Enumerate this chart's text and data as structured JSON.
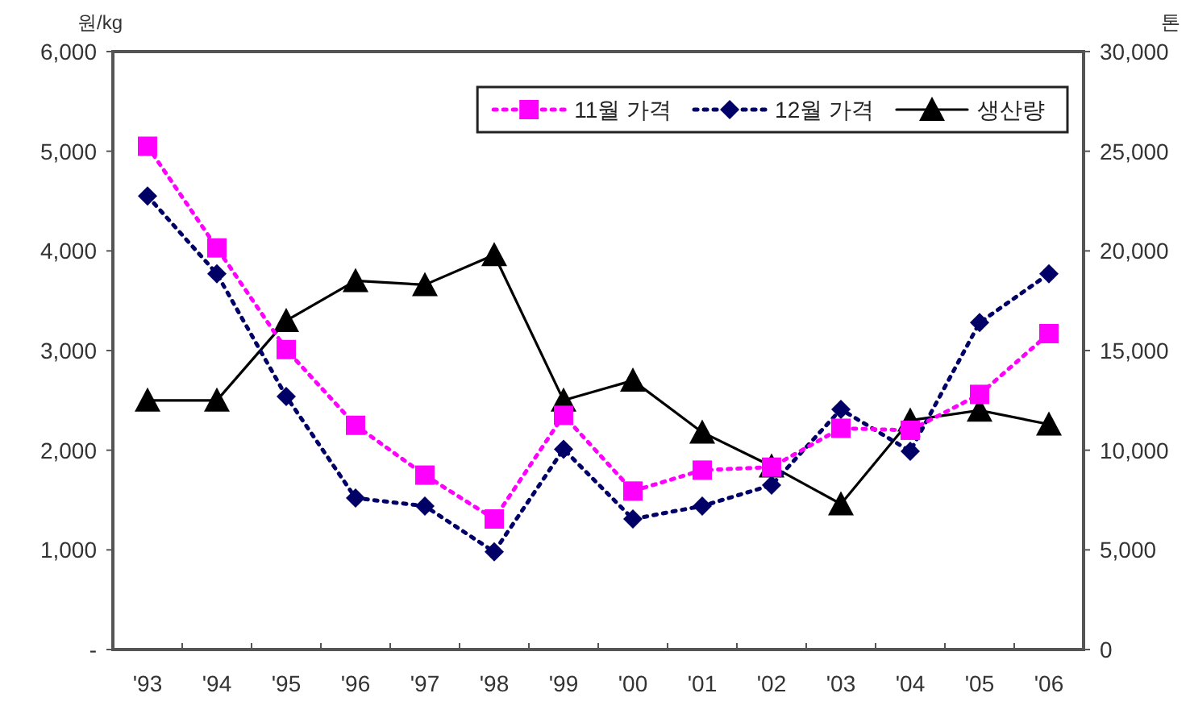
{
  "chart_data": {
    "type": "line",
    "ylabel": "원/kg",
    "y2label": "톤",
    "categories": [
      "'93",
      "'94",
      "'95",
      "'96",
      "'97",
      "'98",
      "'99",
      "'00",
      "'01",
      "'02",
      "'03",
      "'04",
      "'05",
      "'06"
    ],
    "series": [
      {
        "name": "11월 가격",
        "color": "#ff00ff",
        "marker": "square",
        "line_style": "dotted",
        "values": [
          5050,
          4030,
          3010,
          2250,
          1750,
          1310,
          2350,
          1590,
          1800,
          1830,
          2220,
          2200,
          2560,
          3170
        ]
      },
      {
        "name": "12월 가격",
        "color": "#000066",
        "marker": "diamond",
        "line_style": "dotted",
        "values": [
          4550,
          3770,
          2540,
          1520,
          1440,
          980,
          2010,
          1310,
          1440,
          1650,
          2410,
          1990,
          3280,
          3770
        ]
      },
      {
        "name": "생산량",
        "color": "#000000",
        "marker": "triangle",
        "line_style": "solid",
        "axis": "y2",
        "values": [
          12500,
          12500,
          16500,
          18500,
          18300,
          19800,
          12500,
          13500,
          10900,
          9200,
          7300,
          11500,
          12000,
          11300
        ]
      }
    ],
    "ylim": [
      0,
      6000
    ],
    "yticks": [
      {
        "value": 0,
        "label": "-"
      },
      {
        "value": 1000,
        "label": "1,000"
      },
      {
        "value": 2000,
        "label": "2,000"
      },
      {
        "value": 3000,
        "label": "3,000"
      },
      {
        "value": 4000,
        "label": "4,000"
      },
      {
        "value": 5000,
        "label": "5,000"
      },
      {
        "value": 6000,
        "label": "6,000"
      }
    ],
    "y2lim": [
      0,
      30000
    ],
    "y2ticks": [
      0,
      {
        "value": 5000,
        "label": "5,000"
      },
      {
        "value": 10000,
        "label": "10,000"
      },
      {
        "value": 15000,
        "label": "15,000"
      },
      {
        "value": 20000,
        "label": "20,000"
      },
      {
        "value": 25000,
        "label": "25,000"
      },
      {
        "value": 30000,
        "label": "30,000"
      }
    ],
    "grid": false,
    "legend": "top right"
  }
}
